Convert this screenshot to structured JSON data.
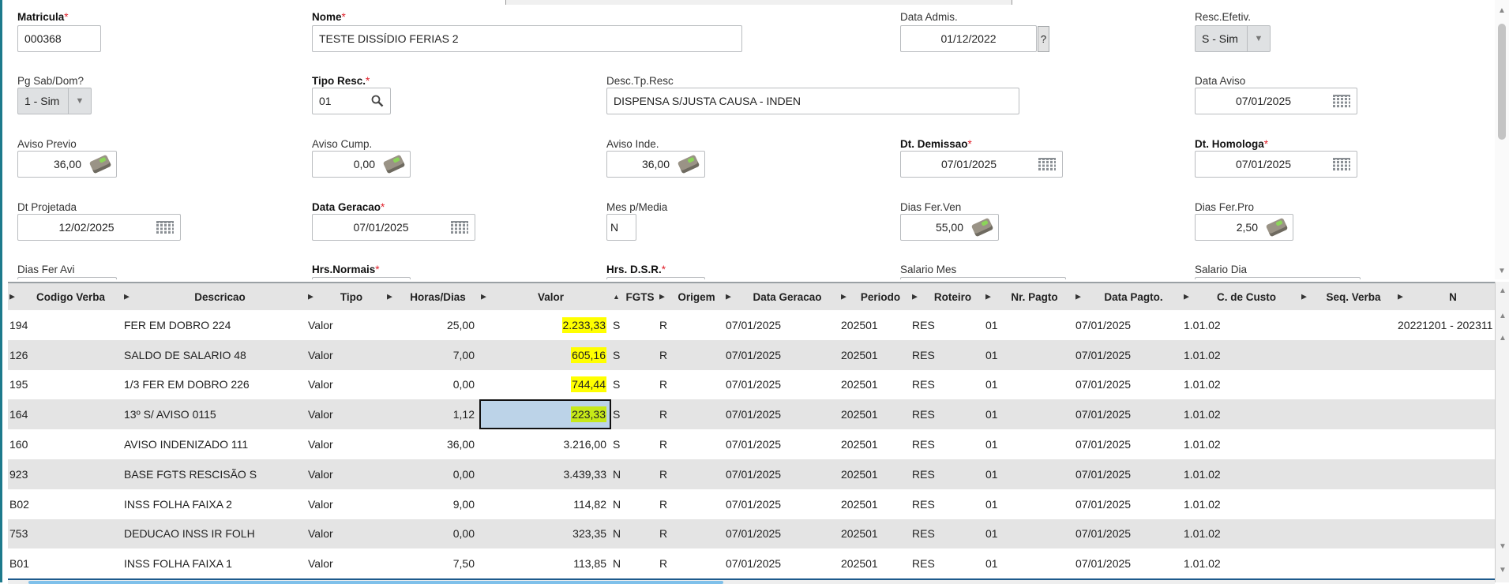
{
  "form": {
    "matricula": {
      "label": "Matricula",
      "value": "000368",
      "required": true
    },
    "nome": {
      "label": "Nome",
      "value": "TESTE DISSÍDIO FERIAS 2",
      "required": true
    },
    "data_admis": {
      "label": "Data Admis.",
      "value": "01/12/2022",
      "help": "?"
    },
    "resc_efetiv": {
      "label": "Resc.Efetiv.",
      "value": "S - Sim"
    },
    "pg_sab_dom": {
      "label": "Pg Sab/Dom?",
      "value": "1 - Sim"
    },
    "tipo_resc": {
      "label": "Tipo Resc.",
      "value": "01",
      "required": true
    },
    "desc_tp_resc": {
      "label": "Desc.Tp.Resc",
      "value": "DISPENSA S/JUSTA CAUSA - INDEN"
    },
    "data_aviso": {
      "label": "Data Aviso",
      "value": "07/01/2025"
    },
    "aviso_previo": {
      "label": "Aviso Previo",
      "value": "36,00"
    },
    "aviso_cump": {
      "label": "Aviso Cump.",
      "value": "0,00"
    },
    "aviso_inde": {
      "label": "Aviso Inde.",
      "value": "36,00"
    },
    "dt_demissao": {
      "label": "Dt. Demissao",
      "value": "07/01/2025",
      "required": true
    },
    "dt_homologa": {
      "label": "Dt. Homologa",
      "value": "07/01/2025",
      "required": true
    },
    "dt_projetada": {
      "label": "Dt Projetada",
      "value": "12/02/2025"
    },
    "data_geracao": {
      "label": "Data Geracao",
      "value": "07/01/2025",
      "required": true
    },
    "mes_p_media": {
      "label": "Mes p/Media",
      "value": "N"
    },
    "dias_fer_ven": {
      "label": "Dias Fer.Ven",
      "value": "55,00"
    },
    "dias_fer_pro": {
      "label": "Dias Fer.Pro",
      "value": "2,50"
    },
    "dias_fer_avi": {
      "label": "Dias Fer Avi"
    },
    "hrs_normais": {
      "label": "Hrs.Normais",
      "required": true
    },
    "hrs_dsr": {
      "label": "Hrs. D.S.R.",
      "required": true
    },
    "salario_mes": {
      "label": "Salario Mes"
    },
    "salario_dia": {
      "label": "Salario Dia"
    },
    "required_mark": "*"
  },
  "grid": {
    "columns": [
      "Codigo Verba",
      "Descricao",
      "Tipo",
      "Horas/Dias",
      "Valor",
      "FGTS",
      "Origem",
      "Data Geracao",
      "Periodo",
      "Roteiro",
      "Nr. Pagto",
      "Data Pagto.",
      "C. de Custo",
      "Seq. Verba",
      "N"
    ],
    "sorted_column": "Valor",
    "rows": [
      [
        "194",
        "FER EM DOBRO 224",
        "Valor",
        "25,00",
        "2.233,33",
        "S",
        "R",
        "07/01/2025",
        "202501",
        "RES",
        "01",
        "07/01/2025",
        "1.01.02",
        "",
        "20221201 - 202311"
      ],
      [
        "126",
        "SALDO DE SALARIO 48",
        "Valor",
        "7,00",
        "605,16",
        "S",
        "R",
        "07/01/2025",
        "202501",
        "RES",
        "01",
        "07/01/2025",
        "1.01.02",
        "",
        ""
      ],
      [
        "195",
        "1/3 FER EM DOBRO 226",
        "Valor",
        "0,00",
        "744,44",
        "S",
        "R",
        "07/01/2025",
        "202501",
        "RES",
        "01",
        "07/01/2025",
        "1.01.02",
        "",
        ""
      ],
      [
        "164",
        "13º S/ AVISO 0115",
        "Valor",
        "1,12",
        "223,33",
        "S",
        "R",
        "07/01/2025",
        "202501",
        "RES",
        "01",
        "07/01/2025",
        "1.01.02",
        "",
        ""
      ],
      [
        "160",
        "AVISO INDENIZADO 111",
        "Valor",
        "36,00",
        "3.216,00",
        "S",
        "R",
        "07/01/2025",
        "202501",
        "RES",
        "01",
        "07/01/2025",
        "1.01.02",
        "",
        ""
      ],
      [
        "923",
        "BASE FGTS RESCISÃO S",
        "Valor",
        "0,00",
        "3.439,33",
        "N",
        "R",
        "07/01/2025",
        "202501",
        "RES",
        "01",
        "07/01/2025",
        "1.01.02",
        "",
        ""
      ],
      [
        "B02",
        "INSS FOLHA FAIXA 2",
        "Valor",
        "9,00",
        "114,82",
        "N",
        "R",
        "07/01/2025",
        "202501",
        "RES",
        "01",
        "07/01/2025",
        "1.01.02",
        "",
        ""
      ],
      [
        "753",
        "DEDUCAO INSS IR FOLH",
        "Valor",
        "0,00",
        "323,35",
        "N",
        "R",
        "07/01/2025",
        "202501",
        "RES",
        "01",
        "07/01/2025",
        "1.01.02",
        "",
        ""
      ],
      [
        "B01",
        "INSS FOLHA FAIXA 1",
        "Valor",
        "7,50",
        "113,85",
        "N",
        "R",
        "07/01/2025",
        "202501",
        "RES",
        "01",
        "07/01/2025",
        "1.01.02",
        "",
        ""
      ]
    ],
    "highlighted_rows": [
      0,
      1,
      2
    ],
    "selected_row": 3,
    "highlight_color": "#ffff00",
    "selection_color": "#bcd3e8"
  },
  "icons": {
    "search": "search-icon",
    "calendar": "calendar-icon",
    "calculator": "money-icon",
    "dropdown": "chevron-down-icon"
  }
}
